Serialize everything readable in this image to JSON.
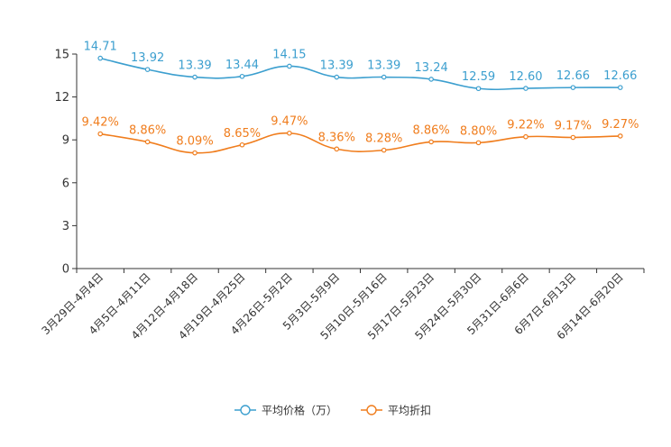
{
  "chart_data": {
    "type": "line",
    "categories": [
      "3月29日-4月4日",
      "4月5日-4月11日",
      "4月12日-4月18日",
      "4月19日-4月25日",
      "4月26日-5月2日",
      "5月3日-5月9日",
      "5月10日-5月16日",
      "5月17日-5月23日",
      "5月24日-5月30日",
      "5月31日-6月6日",
      "6月7日-6月13日",
      "6月14日-6月20日"
    ],
    "ylim": [
      0,
      15
    ],
    "yticks": [
      "0",
      "3",
      "6",
      "9",
      "12",
      "15"
    ],
    "series": [
      {
        "name": "平均价格（万）",
        "color": "#3c9fcf",
        "values": [
          14.71,
          13.92,
          13.39,
          13.44,
          14.15,
          13.39,
          13.39,
          13.24,
          12.59,
          12.6,
          12.66,
          12.66
        ],
        "labels": [
          "14.71",
          "13.92",
          "13.39",
          "13.44",
          "14.15",
          "13.39",
          "13.39",
          "13.24",
          "12.59",
          "12.60",
          "12.66",
          "12.66"
        ]
      },
      {
        "name": "平均折扣",
        "color": "#f07d1d",
        "values": [
          9.42,
          8.86,
          8.09,
          8.65,
          9.47,
          8.36,
          8.28,
          8.86,
          8.8,
          9.22,
          9.17,
          9.27
        ],
        "labels": [
          "9.42%",
          "8.86%",
          "8.09%",
          "8.65%",
          "9.47%",
          "8.36%",
          "8.28%",
          "8.86%",
          "8.80%",
          "9.22%",
          "9.17%",
          "9.27%"
        ]
      }
    ],
    "legend_position": "bottom-center"
  }
}
